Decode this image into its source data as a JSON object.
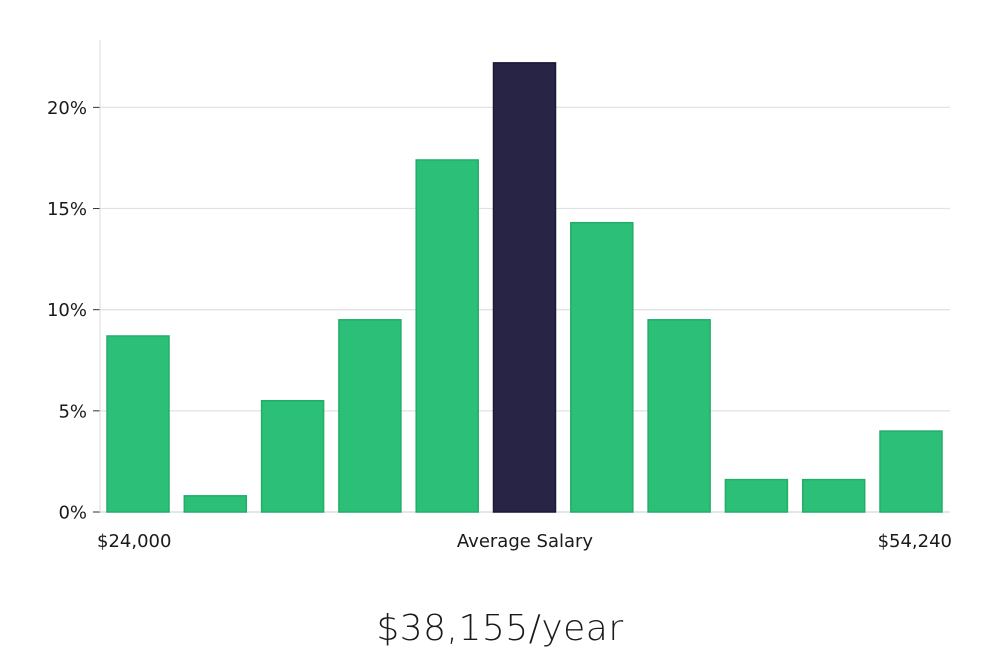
{
  "chart_data": {
    "type": "bar",
    "title": "",
    "xlabel": "Average Salary",
    "ylabel": "",
    "ylim": [
      0,
      23.33
    ],
    "yticks": [
      0,
      5,
      10,
      15,
      20
    ],
    "ytick_labels": [
      "0%",
      "5%",
      "10%",
      "15%",
      "20%"
    ],
    "x_labels": {
      "left": "$24,000",
      "center": "Average Salary",
      "right": "$54,240"
    },
    "values": [
      8.7,
      0.8,
      5.5,
      9.5,
      17.4,
      22.2,
      14.3,
      9.5,
      1.6,
      1.6,
      4.0
    ],
    "highlight_index": 5,
    "colors": {
      "bar": "#2bbf78",
      "bar_edge": "#22ad69",
      "highlight": "#272446",
      "grid": "#e2e2e2",
      "axis": "#d8d8d8"
    }
  },
  "salary": {
    "display": "$38,155/year"
  }
}
